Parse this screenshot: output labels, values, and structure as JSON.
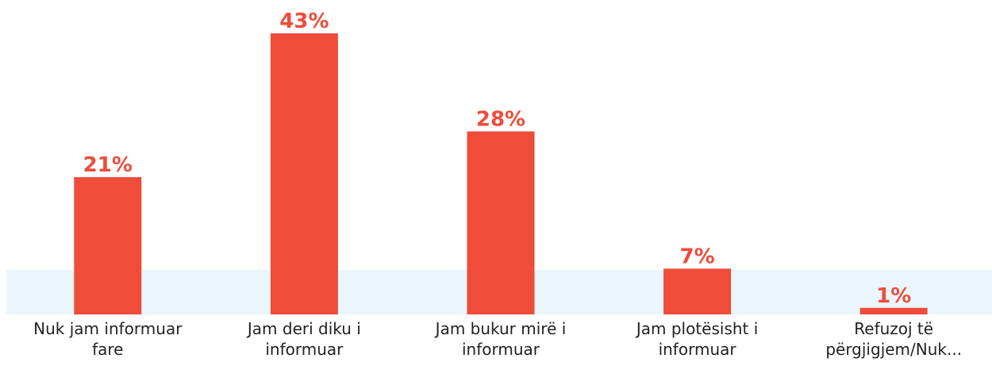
{
  "chart_data": {
    "type": "bar",
    "categories": [
      "Nuk jam informuar fare",
      "Jam deri diku i informuar",
      "Jam bukur mirë i informuar",
      "Jam plotësisht i informuar",
      "Refuzoj të përgjigjem/Nuk..."
    ],
    "values": [
      21,
      43,
      28,
      7,
      1
    ],
    "value_labels": [
      "21%",
      "43%",
      "28%",
      "7%",
      "1%"
    ],
    "color": "#ef4c3a"
  }
}
